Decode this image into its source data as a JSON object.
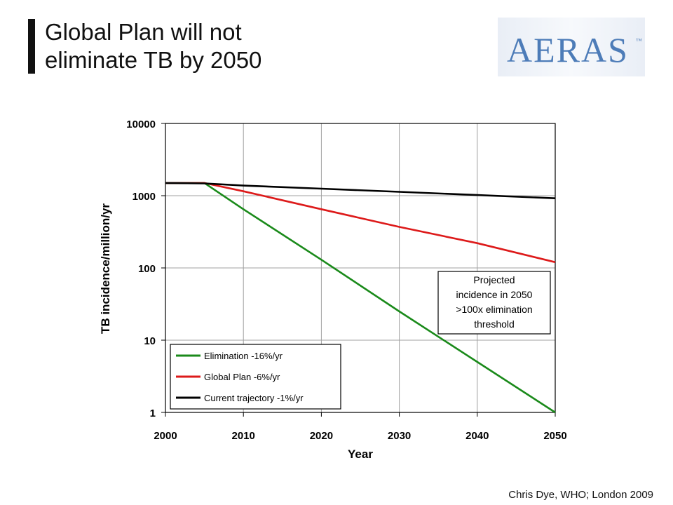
{
  "slide": {
    "title_line1": "Global Plan will not",
    "title_line2": "eliminate TB by 2050",
    "logo_text": "AERAS",
    "logo_tm": "™",
    "credit": "Chris Dye, WHO; London 2009"
  },
  "colors": {
    "elimination": "#1a8a1a",
    "global_plan": "#dd1a1a",
    "current": "#000000",
    "logo_blue": "#4d7cb8",
    "grid": "#a0a0a0"
  },
  "chart_data": {
    "type": "line",
    "title": "",
    "xlabel": "Year",
    "ylabel": "TB incidence/million/yr",
    "xlim": [
      2000,
      2050
    ],
    "ylim": [
      1,
      10000
    ],
    "yscale": "log",
    "grid": true,
    "xticks": [
      "2000",
      "2010",
      "2020",
      "2030",
      "2040",
      "2050"
    ],
    "yticks": [
      "1",
      "10",
      "100",
      "1000",
      "10000"
    ],
    "legend_position": "bottom-left",
    "series": [
      {
        "name": "Elimination -16%/yr",
        "color": "#1a8a1a",
        "x": [
          2000,
          2005,
          2010,
          2020,
          2030,
          2040,
          2050
        ],
        "y": [
          1500,
          1500,
          650,
          130,
          25,
          5,
          1
        ]
      },
      {
        "name": "Global Plan -6%/yr",
        "color": "#dd1a1a",
        "x": [
          2000,
          2005,
          2010,
          2020,
          2030,
          2040,
          2050
        ],
        "y": [
          1500,
          1500,
          1150,
          650,
          370,
          220,
          120
        ]
      },
      {
        "name": "Current trajectory -1%/yr",
        "color": "#000000",
        "x": [
          2000,
          2005,
          2010,
          2020,
          2030,
          2040,
          2050
        ],
        "y": [
          1500,
          1480,
          1380,
          1250,
          1130,
          1020,
          920
        ]
      }
    ],
    "annotation": [
      "Projected",
      "incidence in 2050",
      ">100x elimination",
      "threshold"
    ]
  }
}
